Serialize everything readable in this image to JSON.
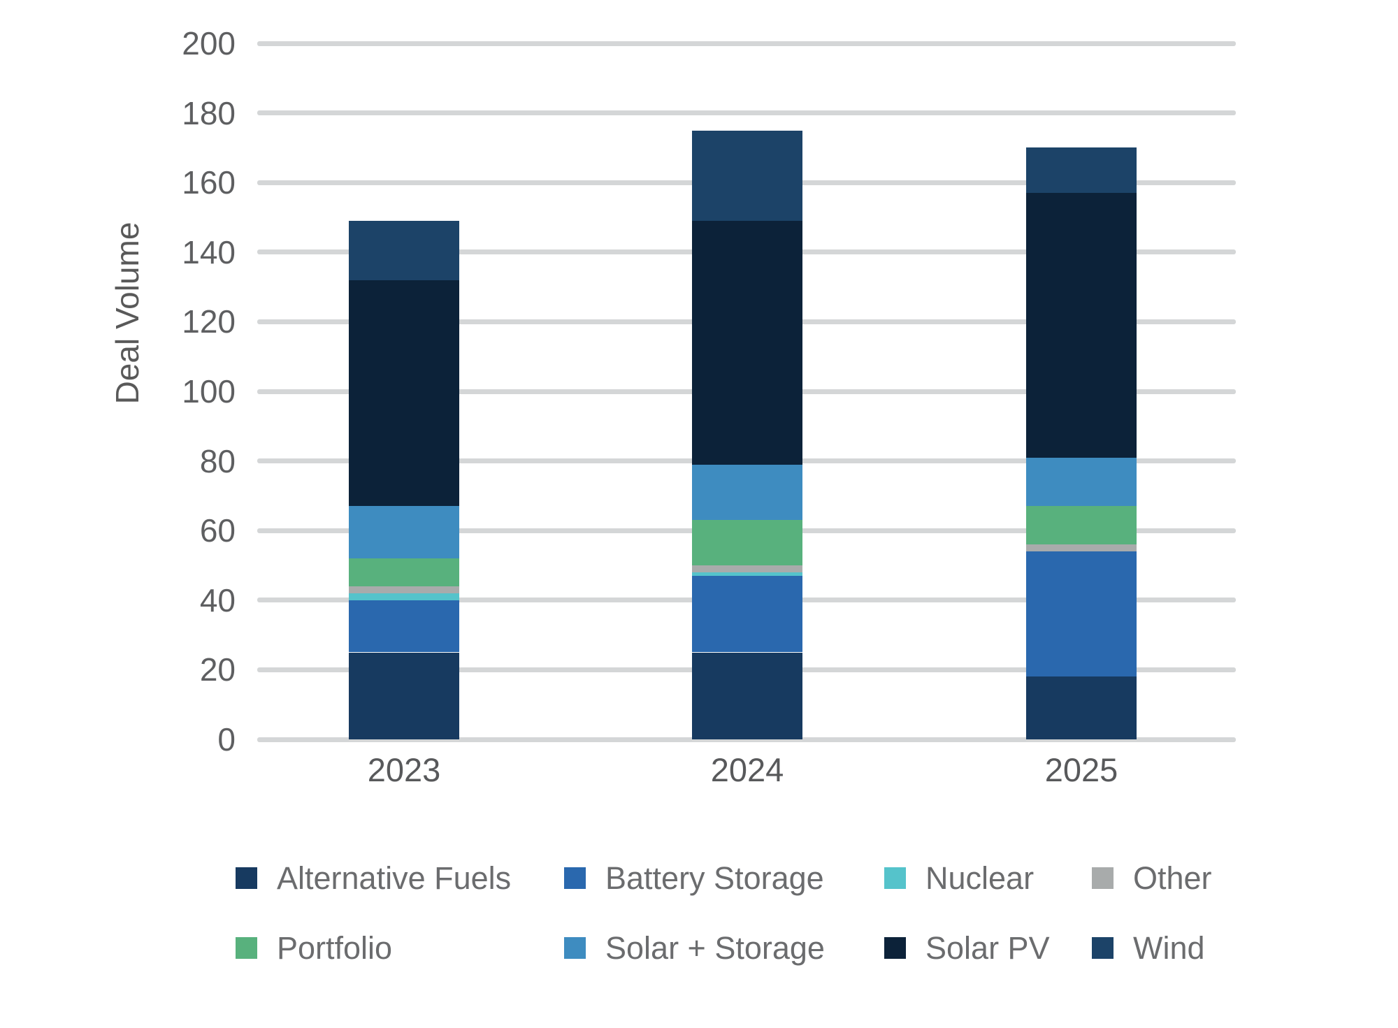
{
  "chart_data": {
    "type": "bar",
    "stacked": true,
    "categories": [
      "2023",
      "2024",
      "2025"
    ],
    "series": [
      {
        "name": "Alternative Fuels",
        "color": "#173A60",
        "values": [
          25,
          25,
          18
        ]
      },
      {
        "name": "Battery Storage",
        "color": "#2A68AE",
        "values": [
          15,
          22,
          36
        ]
      },
      {
        "name": "Nuclear",
        "color": "#55C3CB",
        "values": [
          2,
          1,
          0
        ]
      },
      {
        "name": "Other",
        "color": "#A8ABAB",
        "values": [
          2,
          2,
          2
        ]
      },
      {
        "name": "Portfolio",
        "color": "#58B17D",
        "values": [
          8,
          13,
          11
        ]
      },
      {
        "name": "Solar + Storage",
        "color": "#3E8CC0",
        "values": [
          15,
          16,
          14
        ]
      },
      {
        "name": "Solar PV",
        "color": "#0C2239",
        "values": [
          65,
          70,
          76
        ]
      },
      {
        "name": "Wind",
        "color": "#1C4368",
        "values": [
          17,
          26,
          13
        ]
      }
    ],
    "totals": [
      149,
      175,
      170
    ],
    "ylabel": "Deal Volume",
    "xlabel": "",
    "ylim": [
      0,
      200
    ],
    "yticks": [
      0,
      20,
      40,
      60,
      80,
      100,
      120,
      140,
      160,
      180,
      200
    ],
    "grid": "horizontal",
    "legend_position": "bottom",
    "legend_rows": [
      [
        "Alternative Fuels",
        "Battery Storage",
        "Nuclear",
        "Other"
      ],
      [
        "Portfolio",
        "Solar + Storage",
        "Solar PV",
        "Wind"
      ]
    ]
  },
  "colors": {
    "background": "#FFFFFF",
    "grid": "#D4D6D7",
    "tick_label": "#5E5F61",
    "axis_title": "#595959",
    "x_label": "#58595B",
    "legend_text": "#6B6C6E"
  }
}
